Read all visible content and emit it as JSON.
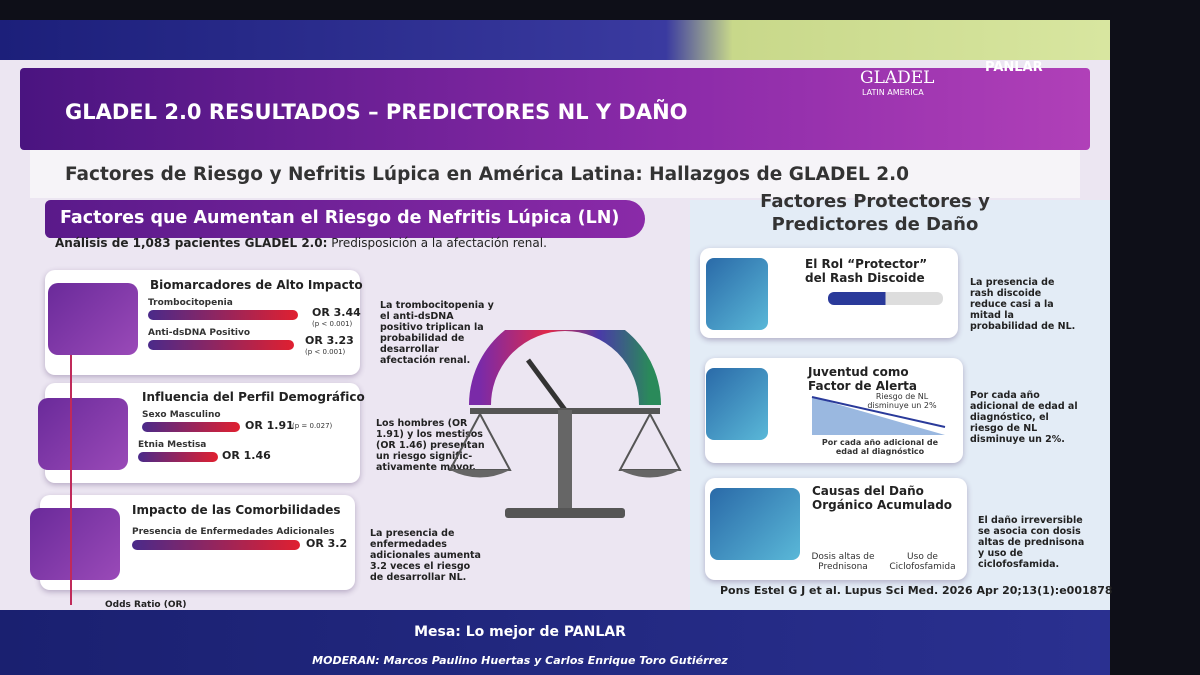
{
  "header": {
    "title": "GLADEL 2.0 RESULTADOS – PREDICTORES NL Y DAÑO",
    "logo_main": "GLADEL",
    "logo_sub": "LATIN AMERICA",
    "logo_panlar": "PANLAR"
  },
  "subtitle": "Factores de Riesgo y Nefritis Lúpica en América Latina: Hallazgos de GLADEL 2.0",
  "left": {
    "heading": "Factores que Aumentan el Riesgo de Nefritis Lúpica (LN)",
    "analysis": {
      "bold": "Análisis de 1,083 pacientes GLADEL 2.0:",
      "rest": "Predisposición a la afectación renal."
    },
    "cards": [
      {
        "title": "Biomarcadores de Alto Impacto",
        "items": [
          {
            "label": "Trombocitopenia",
            "value": "OR 3.44",
            "p": "(p < 0.001)"
          },
          {
            "label": "Anti-dsDNA Positivo",
            "value": "OR 3.23",
            "p": "(p < 0.001)"
          }
        ],
        "note": "La trombocitopenia y el anti-dsDNA positivo triplican la probabilidad de desarrollar afectación renal."
      },
      {
        "title": "Influencia del Perfil Demográfico",
        "items": [
          {
            "label": "Sexo Masculino",
            "value": "OR 1.91",
            "p": "(p = 0.027)"
          },
          {
            "label": "Etnia Mestisa",
            "value": "OR 1.46"
          }
        ],
        "note": "Los hombres (OR 1.91) y los mestisos (OR 1.46) presentan un riesgo signific-ativamente mayor."
      },
      {
        "title": "Impacto de las Comorbilidades",
        "items": [
          {
            "label": "Presencia de Enfermedades Adicionales",
            "value": "OR 3.2"
          }
        ],
        "note": "La presencia de enfermedades adicionales aumenta 3.2 veces el riesgo de desarrollar NL."
      }
    ],
    "axis_label": "Odds Ratio (OR)"
  },
  "right": {
    "heading": "Factores Protectores y Predictores de Daño",
    "cards": [
      {
        "title": "El Rol “Protector” del Rash Discoide",
        "note": "La presencia de rash discoide reduce casi a la mitad la probabilidad de NL."
      },
      {
        "title": "Juventud como Factor de Alerta",
        "chart_label": "Riesgo de NL disminuye un 2%",
        "chart_caption": "Por cada año adicional de edad al diagnóstico",
        "note": "Por cada año adicional de edad al diagnóstico, el riesgo de NL disminuye un 2%."
      },
      {
        "title": "Causas del Daño Orgánico Acumulado",
        "drugs": [
          "Dosis altas de Prednisona",
          "Uso de Ciclofosfamida"
        ],
        "note": "El daño irreversible se asocia con dosis altas de prednisona y uso de ciclofosfamida."
      }
    ]
  },
  "citation": "Pons Estel G J et al. Lupus Sci Med. 2026 Apr 20;13(1):e001878",
  "footer": {
    "session": "Mesa: Lo mejor de PANLAR",
    "moderators": "MODERAN: Marcos Paulino Huertas y Carlos Enrique Toro Gutiérrez"
  }
}
